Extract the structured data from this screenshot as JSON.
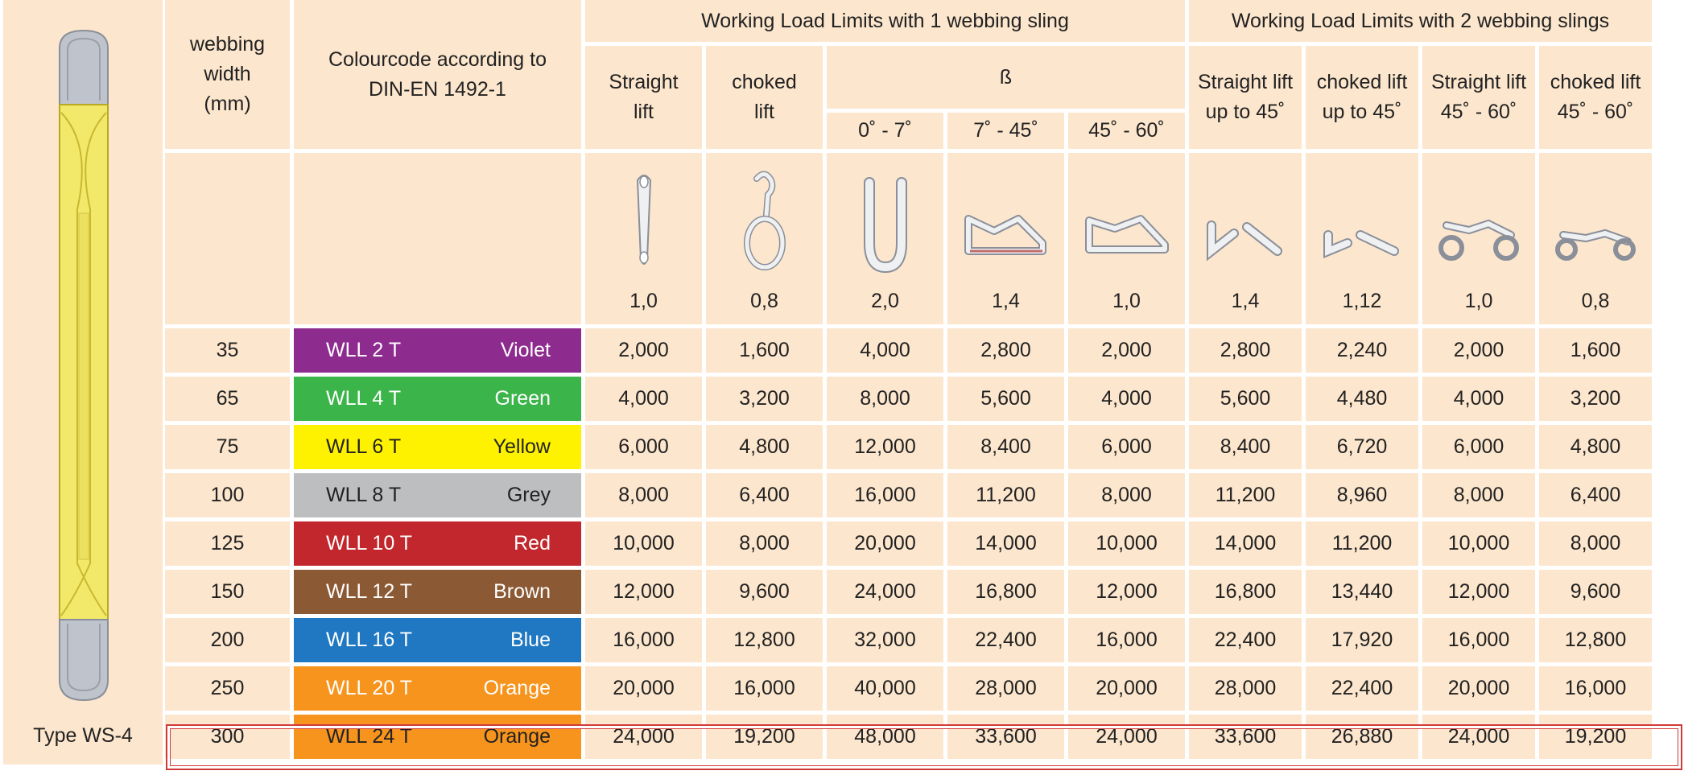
{
  "sling": {
    "caption": "Type WS-4",
    "colors": {
      "body": "#f2e86a",
      "loop": "#bfc3cc"
    }
  },
  "headers": {
    "width": "webbing width (mm)",
    "colourcode": "Colourcode according to DIN-EN 1492-1",
    "one_sling": "Working Load Limits with 1 webbing sling",
    "two_slings": "Working Load Limits with 2 webbing slings",
    "straight_lift": "Straight lift",
    "choked_lift": "choked lift",
    "beta": "ß",
    "angle_0_7": "0˚ - 7˚",
    "angle_7_45": "7˚ - 45˚",
    "angle_45_60": "45˚ - 60˚",
    "straight_up_45": "Straight lift up to 45˚",
    "choked_up_45": "choked lift up to 45˚",
    "straight_45_60": "Straight lift 45˚ - 60˚",
    "choked_45_60": "choked lift 45˚ - 60˚"
  },
  "factors": [
    "1,0",
    "0,8",
    "2,0",
    "1,4",
    "1,0",
    "1,4",
    "1,12",
    "1,0",
    "0,8"
  ],
  "icons": [
    "straight-lift-icon",
    "choked-lift-icon",
    "basket-0-7-icon",
    "basket-7-45-icon",
    "basket-45-60-icon",
    "two-sling-straight-icon",
    "two-sling-choked-icon",
    "two-sling-straight-45-60-icon",
    "two-sling-choked-45-60-icon"
  ],
  "rows": [
    {
      "width": "35",
      "wll": "WLL 2 T",
      "colour": "Violet",
      "hex": "#8e2b8f",
      "text": "light",
      "values": [
        "2,000",
        "1,600",
        "4,000",
        "2,800",
        "2,000",
        "2,800",
        "2,240",
        "2,000",
        "1,600"
      ]
    },
    {
      "width": "65",
      "wll": "WLL 4 T",
      "colour": "Green",
      "hex": "#3bb44a",
      "text": "light",
      "values": [
        "4,000",
        "3,200",
        "8,000",
        "5,600",
        "4,000",
        "5,600",
        "4,480",
        "4,000",
        "3,200"
      ]
    },
    {
      "width": "75",
      "wll": "WLL 6 T",
      "colour": "Yellow",
      "hex": "#fff200",
      "text": "dark",
      "values": [
        "6,000",
        "4,800",
        "12,000",
        "8,400",
        "6,000",
        "8,400",
        "6,720",
        "6,000",
        "4,800"
      ]
    },
    {
      "width": "100",
      "wll": "WLL 8 T",
      "colour": "Grey",
      "hex": "#bcbec0",
      "text": "dark",
      "values": [
        "8,000",
        "6,400",
        "16,000",
        "11,200",
        "8,000",
        "11,200",
        "8,960",
        "8,000",
        "6,400"
      ]
    },
    {
      "width": "125",
      "wll": "WLL 10 T",
      "colour": "Red",
      "hex": "#c1272d",
      "text": "light",
      "values": [
        "10,000",
        "8,000",
        "20,000",
        "14,000",
        "10,000",
        "14,000",
        "11,200",
        "10,000",
        "8,000"
      ]
    },
    {
      "width": "150",
      "wll": "WLL 12 T",
      "colour": "Brown",
      "hex": "#8b5a34",
      "text": "light",
      "values": [
        "12,000",
        "9,600",
        "24,000",
        "16,800",
        "12,000",
        "16,800",
        "13,440",
        "12,000",
        "9,600"
      ]
    },
    {
      "width": "200",
      "wll": "WLL 16 T",
      "colour": "Blue",
      "hex": "#1f78c1",
      "text": "light",
      "values": [
        "16,000",
        "12,800",
        "32,000",
        "22,400",
        "16,000",
        "22,400",
        "17,920",
        "16,000",
        "12,800"
      ]
    },
    {
      "width": "250",
      "wll": "WLL 20 T",
      "colour": "Orange",
      "hex": "#f7941d",
      "text": "light",
      "values": [
        "20,000",
        "16,000",
        "40,000",
        "28,000",
        "20,000",
        "28,000",
        "22,400",
        "20,000",
        "16,000"
      ]
    },
    {
      "width": "300",
      "wll": "WLL 24 T",
      "colour": "Orange",
      "hex": "#f7941d",
      "text": "dark",
      "values": [
        "24,000",
        "19,200",
        "48,000",
        "33,600",
        "24,000",
        "33,600",
        "26,880",
        "24,000",
        "19,200"
      ]
    }
  ]
}
